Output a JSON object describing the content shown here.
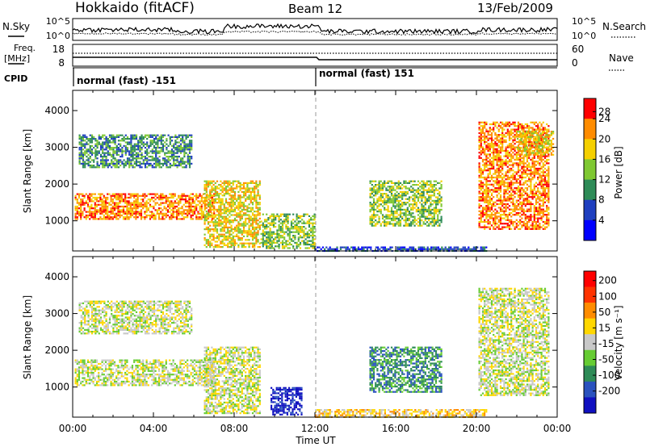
{
  "header": {
    "station": "Hokkaido (fitACF)",
    "beam": "Beam 12",
    "date": "13/Feb/2009"
  },
  "noise_panel": {
    "left_label": "N.Sky",
    "right_label": "N.Search",
    "left_ticks": [
      "10^5",
      "10^0"
    ],
    "right_ticks": [
      "10^5",
      "10^0"
    ]
  },
  "freq_panel": {
    "left_label_1": "Freq.",
    "left_label_2": "[MHz]",
    "right_label": "Nave",
    "left_ticks": [
      "18",
      "8"
    ],
    "right_ticks": [
      "60",
      "0"
    ]
  },
  "cpid_panel": {
    "label": "CPID",
    "segments": [
      "normal (fast) -151",
      "normal (fast) 151"
    ]
  },
  "x_axis": {
    "label": "Time UT",
    "ticks": [
      "00:00",
      "04:00",
      "08:00",
      "12:00",
      "16:00",
      "20:00",
      "00:00"
    ]
  },
  "y_axis": {
    "label": "Slant Range [km]",
    "ticks": [
      "1000",
      "2000",
      "3000",
      "4000"
    ]
  },
  "power_colorbar": {
    "label": "Power [dB]",
    "ticks": [
      "4",
      "8",
      "12",
      "16",
      "20",
      "24",
      "28"
    ],
    "colors": [
      "#0000ff",
      "#1f3fbf",
      "#2e8b57",
      "#7fc832",
      "#f5d000",
      "#ff8c00",
      "#ff0000"
    ]
  },
  "velocity_colorbar": {
    "label": "Velocity [m s⁻¹]",
    "ticks": [
      "200",
      "100",
      "50",
      "15",
      "-15",
      "-50",
      "-100",
      "-200"
    ],
    "colors": [
      "#1010c0",
      "#2a52be",
      "#2e8b57",
      "#66cc33",
      "#c8c8c8",
      "#ffd700",
      "#ff8c00",
      "#ff3300",
      "#ff0000"
    ]
  },
  "chart_data": {
    "type": "heatmap",
    "x_range_hours": [
      0,
      24
    ],
    "y_range_km": [
      180,
      4550
    ],
    "grid": false,
    "cpid_change_hour": 12,
    "power_regions": [
      {
        "t0": 0.3,
        "t1": 5.9,
        "r0": 2450,
        "r1": 3350,
        "level": 2
      },
      {
        "t0": 0.1,
        "t1": 7.0,
        "r0": 1050,
        "r1": 1750,
        "level": 5
      },
      {
        "t0": 6.5,
        "t1": 9.3,
        "r0": 300,
        "r1": 2100,
        "level": 4
      },
      {
        "t0": 9.3,
        "t1": 12.0,
        "r0": 250,
        "r1": 1200,
        "level": 3
      },
      {
        "t0": 12.0,
        "t1": 20.5,
        "r0": 200,
        "r1": 300,
        "level": 1
      },
      {
        "t0": 14.7,
        "t1": 18.3,
        "r0": 850,
        "r1": 2100,
        "level": 3
      },
      {
        "t0": 20.1,
        "t1": 23.6,
        "r0": 800,
        "r1": 3700,
        "level": 5
      },
      {
        "t0": 22.0,
        "t1": 23.8,
        "r0": 2800,
        "r1": 3450,
        "level": 4
      }
    ],
    "velocity_regions": [
      {
        "t0": 0.3,
        "t1": 5.9,
        "r0": 2450,
        "r1": 3350,
        "level": 4
      },
      {
        "t0": 0.1,
        "t1": 7.0,
        "r0": 1050,
        "r1": 1750,
        "level": 4
      },
      {
        "t0": 6.5,
        "t1": 9.3,
        "r0": 300,
        "r1": 2100,
        "level": 4
      },
      {
        "t0": 9.8,
        "t1": 11.3,
        "r0": 250,
        "r1": 1000,
        "level": 0
      },
      {
        "t0": 12.0,
        "t1": 20.5,
        "r0": 200,
        "r1": 400,
        "level": 5
      },
      {
        "t0": 14.7,
        "t1": 18.3,
        "r0": 850,
        "r1": 2100,
        "level": 2
      },
      {
        "t0": 20.1,
        "t1": 23.6,
        "r0": 800,
        "r1": 3700,
        "level": 4
      }
    ]
  }
}
